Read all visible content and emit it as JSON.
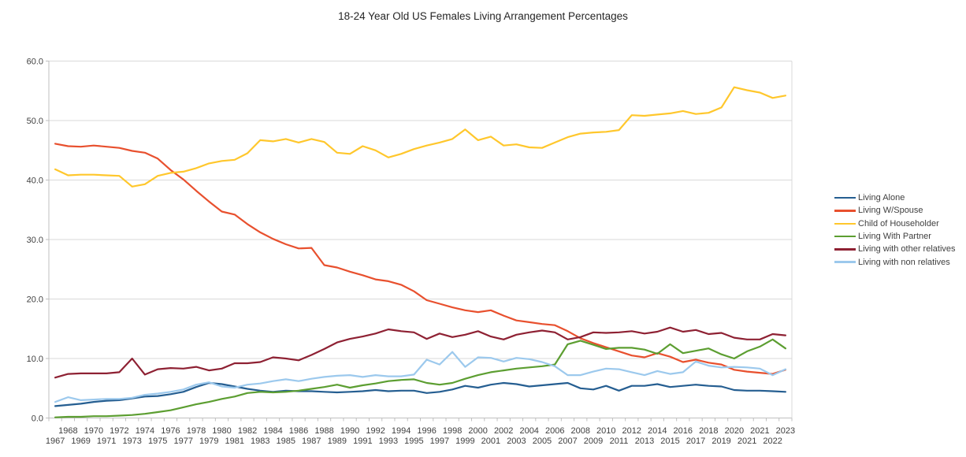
{
  "chart_data": {
    "type": "line",
    "title": "18-24 Year Old US Females Living Arrangement Percentages",
    "xlabel": "",
    "ylabel": "",
    "ylim": [
      0,
      60
    ],
    "y_ticks": [
      "0.0",
      "10.0",
      "20.0",
      "30.0",
      "40.0",
      "50.0",
      "60.0"
    ],
    "grid": true,
    "legend_position": "right",
    "categories": [
      "1967",
      "1968",
      "1969",
      "1970",
      "1971",
      "1972",
      "1973",
      "1974",
      "1975",
      "1976",
      "1977",
      "1978",
      "1979",
      "1980",
      "1981",
      "1982",
      "1983",
      "1984",
      "1985",
      "1986",
      "1987",
      "1988",
      "1989",
      "1990",
      "1991",
      "1992",
      "1993",
      "1994",
      "1995",
      "1996",
      "1997",
      "1998",
      "1999",
      "2000",
      "2001",
      "2002",
      "2003",
      "2004",
      "2005",
      "2006",
      "2007",
      "2008",
      "2009",
      "2010",
      "2011",
      "2012",
      "2013",
      "2014",
      "2015",
      "2016",
      "2017",
      "2018",
      "2019",
      "2020",
      "2021",
      "2021",
      "2022",
      "2023"
    ],
    "series": [
      {
        "name": "Living Alone",
        "color": "#255E91",
        "values": [
          2.0,
          2.2,
          2.4,
          2.7,
          2.9,
          3.0,
          3.3,
          3.6,
          3.7,
          4.0,
          4.4,
          5.2,
          5.9,
          5.7,
          5.3,
          4.9,
          4.6,
          4.4,
          4.6,
          4.5,
          4.5,
          4.4,
          4.3,
          4.4,
          4.5,
          4.7,
          4.5,
          4.6,
          4.6,
          4.2,
          4.4,
          4.8,
          5.4,
          5.1,
          5.6,
          5.9,
          5.7,
          5.3,
          5.5,
          5.7,
          5.9,
          5.0,
          4.8,
          5.4,
          4.6,
          5.4,
          5.4,
          5.7,
          5.2,
          5.4,
          5.6,
          5.4,
          5.3,
          4.7,
          4.6,
          4.6,
          4.5,
          4.4
        ]
      },
      {
        "name": "Living W/Spouse",
        "color": "#E8502E",
        "values": [
          46.1,
          45.7,
          45.6,
          45.8,
          45.6,
          45.4,
          44.9,
          44.6,
          43.6,
          41.7,
          40.1,
          38.2,
          36.4,
          34.7,
          34.2,
          32.6,
          31.2,
          30.1,
          29.2,
          28.5,
          28.6,
          25.7,
          25.3,
          24.6,
          24.0,
          23.3,
          23.0,
          22.4,
          21.3,
          19.8,
          19.2,
          18.6,
          18.1,
          17.8,
          18.1,
          17.2,
          16.4,
          16.1,
          15.8,
          15.6,
          14.6,
          13.4,
          12.6,
          11.9,
          11.2,
          10.5,
          10.2,
          10.9,
          10.3,
          9.4,
          9.8,
          9.3,
          9.0,
          8.1,
          7.8,
          7.6,
          7.4,
          8.1
        ]
      },
      {
        "name": "Child of Householder",
        "color": "#FFC72C",
        "values": [
          41.8,
          40.8,
          40.9,
          40.9,
          40.8,
          40.7,
          38.9,
          39.3,
          40.7,
          41.2,
          41.4,
          42.0,
          42.8,
          43.2,
          43.4,
          44.5,
          46.7,
          46.5,
          46.9,
          46.3,
          46.9,
          46.4,
          44.6,
          44.4,
          45.7,
          45.0,
          43.8,
          44.4,
          45.2,
          45.8,
          46.3,
          46.9,
          48.5,
          46.7,
          47.3,
          45.8,
          46.0,
          45.5,
          45.4,
          46.3,
          47.2,
          47.8,
          48.0,
          48.1,
          48.4,
          50.9,
          50.8,
          51.0,
          51.2,
          51.6,
          51.1,
          51.3,
          52.2,
          55.6,
          55.1,
          54.7,
          53.8,
          54.2
        ]
      },
      {
        "name": "Living With Partner",
        "color": "#5C9E31",
        "values": [
          0.1,
          0.2,
          0.2,
          0.3,
          0.3,
          0.4,
          0.5,
          0.7,
          1.0,
          1.3,
          1.8,
          2.3,
          2.7,
          3.2,
          3.6,
          4.2,
          4.4,
          4.3,
          4.4,
          4.6,
          4.9,
          5.2,
          5.6,
          5.1,
          5.5,
          5.8,
          6.2,
          6.4,
          6.5,
          5.9,
          5.6,
          5.9,
          6.6,
          7.2,
          7.7,
          8.0,
          8.3,
          8.5,
          8.7,
          9.0,
          12.4,
          13.0,
          12.3,
          11.6,
          11.8,
          11.8,
          11.5,
          10.8,
          12.4,
          10.9,
          11.3,
          11.7,
          10.7,
          10.0,
          11.2,
          12.0,
          13.2,
          11.7
        ]
      },
      {
        "name": "Living with other relatives",
        "color": "#8E2133",
        "values": [
          6.8,
          7.4,
          7.5,
          7.5,
          7.5,
          7.7,
          10.0,
          7.3,
          8.2,
          8.4,
          8.3,
          8.6,
          8.0,
          8.3,
          9.2,
          9.2,
          9.4,
          10.2,
          10.0,
          9.7,
          10.6,
          11.6,
          12.7,
          13.3,
          13.7,
          14.2,
          14.9,
          14.6,
          14.4,
          13.3,
          14.2,
          13.6,
          14.0,
          14.6,
          13.7,
          13.2,
          14.0,
          14.4,
          14.7,
          14.4,
          13.2,
          13.6,
          14.4,
          14.3,
          14.4,
          14.6,
          14.2,
          14.5,
          15.2,
          14.5,
          14.8,
          14.1,
          14.3,
          13.5,
          13.2,
          13.2,
          14.1,
          13.9
        ]
      },
      {
        "name": "Living with non relatives",
        "color": "#9CC9ED",
        "values": [
          2.7,
          3.5,
          3.0,
          3.1,
          3.2,
          3.2,
          3.4,
          3.9,
          4.1,
          4.4,
          4.8,
          5.6,
          6.0,
          5.3,
          5.1,
          5.6,
          5.8,
          6.2,
          6.5,
          6.2,
          6.6,
          6.9,
          7.1,
          7.2,
          6.9,
          7.2,
          7.0,
          7.0,
          7.3,
          9.8,
          9.0,
          11.1,
          8.6,
          10.2,
          10.1,
          9.5,
          10.1,
          9.9,
          9.4,
          8.7,
          7.2,
          7.2,
          7.8,
          8.3,
          8.2,
          7.7,
          7.2,
          7.9,
          7.4,
          7.7,
          9.5,
          8.8,
          8.5,
          8.6,
          8.5,
          8.3,
          7.2,
          8.2
        ]
      }
    ]
  }
}
